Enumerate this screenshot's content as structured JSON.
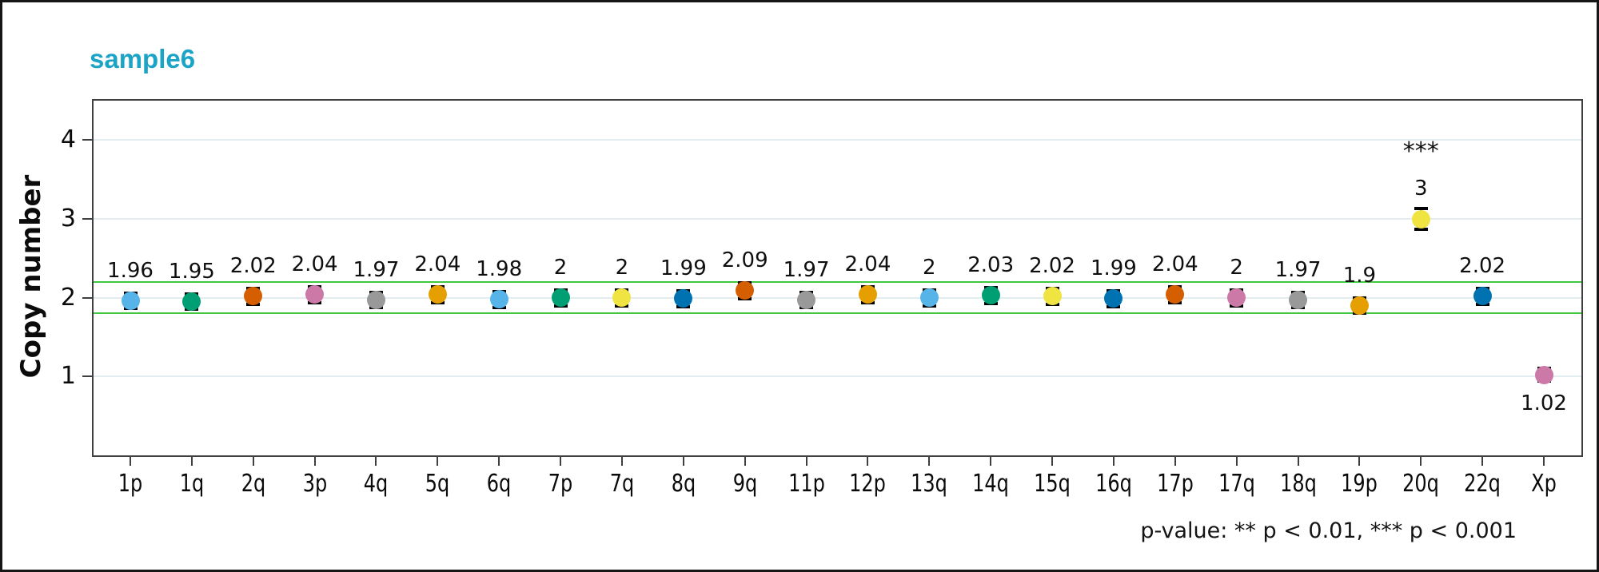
{
  "title": "sample6",
  "title_color": "#1BA4C6",
  "ylabel": "Copy number",
  "footer": "p-value:  ** p < 0.01, *** p < 0.001",
  "chart_data": {
    "type": "scatter",
    "title": "sample6",
    "xlabel": "",
    "ylabel": "Copy number",
    "categories": [
      "1p",
      "1q",
      "2q",
      "3p",
      "4q",
      "5q",
      "6q",
      "7p",
      "7q",
      "8q",
      "9q",
      "11p",
      "12p",
      "13q",
      "14q",
      "15q",
      "16q",
      "17p",
      "17q",
      "18q",
      "19p",
      "20q",
      "22q",
      "Xp"
    ],
    "values": [
      1.96,
      1.95,
      2.02,
      2.04,
      1.97,
      2.04,
      1.98,
      2,
      2,
      1.99,
      2.09,
      1.97,
      2.04,
      2,
      2.03,
      2.02,
      1.99,
      2.04,
      2,
      1.97,
      1.9,
      3,
      2.02,
      1.02
    ],
    "labels": [
      "1.96",
      "1.95",
      "2.02",
      "2.04",
      "1.97",
      "2.04",
      "1.98",
      "2",
      "2",
      "1.99",
      "2.09",
      "1.97",
      "2.04",
      "2",
      "2.03",
      "2.02",
      "1.99",
      "2.04",
      "2",
      "1.97",
      "1.9",
      "3",
      "2.02",
      "1.02"
    ],
    "colors": [
      "#56B4E9",
      "#009E73",
      "#D55E00",
      "#CC79A7",
      "#999999",
      "#E69F00",
      "#56B4E9",
      "#009E73",
      "#F0E442",
      "#0072B2",
      "#D55E00",
      "#999999",
      "#E69F00",
      "#56B4E9",
      "#009E73",
      "#F0E442",
      "#0072B2",
      "#D55E00",
      "#CC79A7",
      "#999999",
      "#E69F00",
      "#F0E442",
      "#0072B2",
      "#CC79A7"
    ],
    "errors": [
      0.1,
      0.1,
      0.1,
      0.1,
      0.1,
      0.1,
      0.1,
      0.1,
      0.1,
      0.1,
      0.1,
      0.1,
      0.1,
      0.1,
      0.1,
      0.1,
      0.1,
      0.1,
      0.1,
      0.1,
      0.1,
      0.13,
      0.1,
      0.08
    ],
    "significance": [
      "",
      "",
      "",
      "",
      "",
      "",
      "",
      "",
      "",
      "",
      "",
      "",
      "",
      "",
      "",
      "",
      "",
      "",
      "",
      "",
      "",
      "***",
      "",
      ""
    ],
    "label_position": [
      "above",
      "above",
      "above",
      "above",
      "above",
      "above",
      "above",
      "above",
      "above",
      "above",
      "above",
      "above",
      "above",
      "above",
      "above",
      "above",
      "above",
      "above",
      "above",
      "above",
      "above",
      "above",
      "above",
      "below"
    ],
    "yticks": [
      1,
      2,
      3,
      4
    ],
    "ylim": [
      0,
      4.5
    ],
    "grid": true,
    "grid_color": "#E3EDF0",
    "reference_lines": [
      {
        "y": 1.8,
        "color": "#40C840"
      },
      {
        "y": 2.2,
        "color": "#40C840"
      }
    ],
    "legend": "none",
    "annotation_legend": "p-value:  ** p < 0.01, *** p < 0.001"
  }
}
